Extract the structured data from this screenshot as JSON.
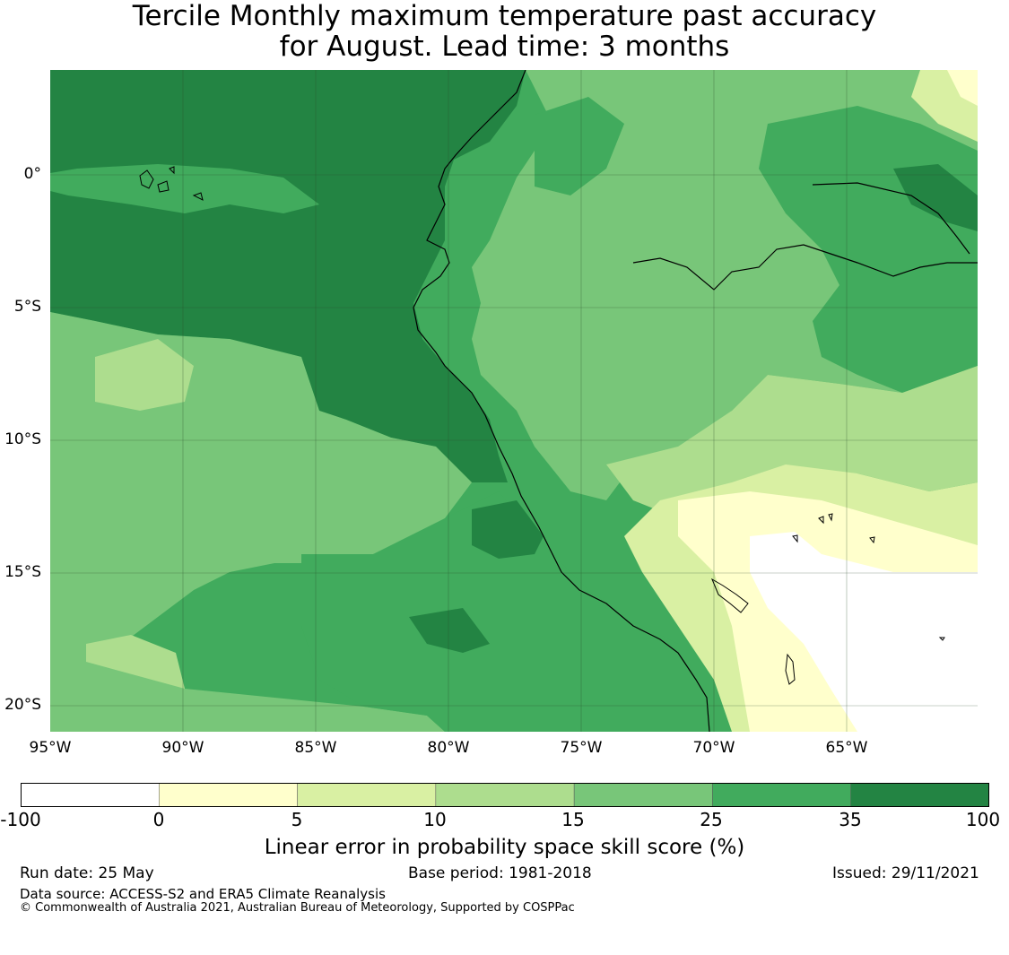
{
  "title": {
    "line1": "Tercile Monthly maximum temperature past accuracy",
    "line2": "for August. Lead time: 3 months"
  },
  "map": {
    "lat_labels": [
      "0°",
      "5°S",
      "10°S",
      "15°S",
      "20°S"
    ],
    "lon_labels": [
      "95°W",
      "90°W",
      "85°W",
      "80°W",
      "75°W",
      "70°W",
      "65°W"
    ],
    "colors": {
      "lt0": "#ffffff",
      "0_5": "#ffffcc",
      "5_10": "#d9f0a3",
      "10_15": "#addd8e",
      "15_25": "#78c679",
      "25_35": "#41ab5d",
      "35_100": "#238443",
      "coast": "#000000",
      "grid": "#2a4a2a"
    }
  },
  "colorbar": {
    "ticks": [
      "-100",
      "0",
      "5",
      "10",
      "15",
      "25",
      "35",
      "100"
    ],
    "colors": [
      "#ffffff",
      "#ffffcc",
      "#d9f0a3",
      "#addd8e",
      "#78c679",
      "#41ab5d",
      "#238443"
    ],
    "label": "Linear error in probability space skill score (%)"
  },
  "footer": {
    "run_date": "Run date: 25 May",
    "base_period": "Base period: 1981-2018",
    "issued": "Issued: 29/11/2021",
    "data_source": "Data source: ACCESS-S2 and ERA5 Climate Reanalysis",
    "copyright": "© Commonwealth of Australia 2021, Australian Bureau of Meteorology, Supported by COSPPac"
  }
}
